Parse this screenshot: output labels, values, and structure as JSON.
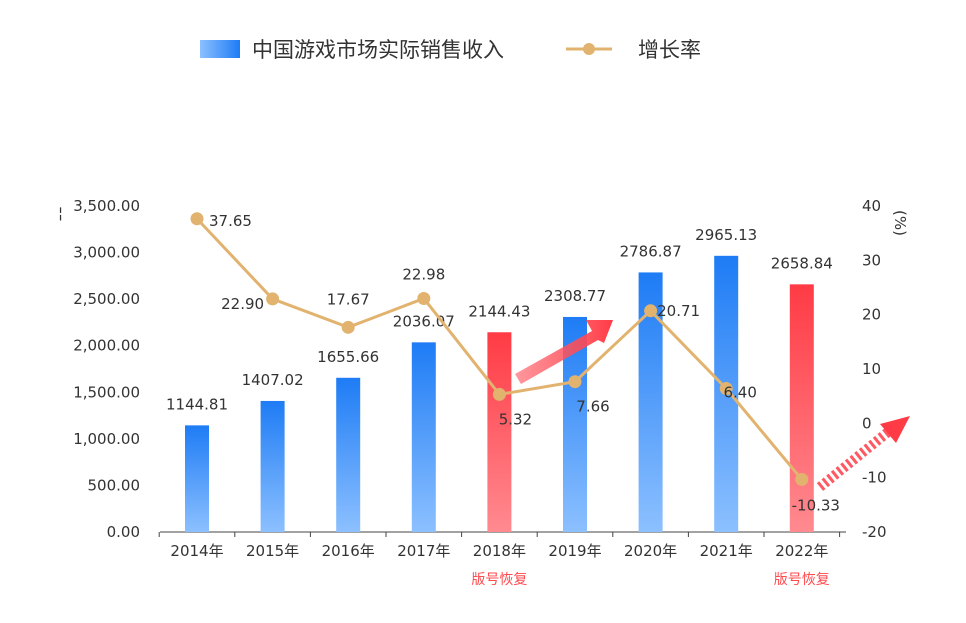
{
  "legend": {
    "bar_label": "中国游戏市场实际销售收入",
    "line_label": "增长率"
  },
  "colors": {
    "bar_top": "#1e7cf5",
    "bar_bottom": "#8cc0ff",
    "highlight_top": "#ff3b45",
    "highlight_bottom": "#ff8a90",
    "line": "#e2b36f",
    "axis": "#444444",
    "note": "#ff4a4f"
  },
  "chart_data": {
    "type": "bar",
    "categories": [
      "2014年",
      "2015年",
      "2016年",
      "2017年",
      "2018年",
      "2019年",
      "2020年",
      "2021年",
      "2022年"
    ],
    "series": [
      {
        "name": "中国游戏市场实际销售收入",
        "type": "bar",
        "values": [
          1144.81,
          1407.02,
          1655.66,
          2036.07,
          2144.43,
          2308.77,
          2786.87,
          2965.13,
          2658.84
        ],
        "value_labels": [
          "1144.81",
          "1407.02",
          "1655.66",
          "2036.07",
          "2144.43",
          "2308.77",
          "2786.87",
          "2965.13",
          "2658.84"
        ],
        "highlight": [
          false,
          false,
          false,
          false,
          true,
          false,
          false,
          false,
          true
        ]
      },
      {
        "name": "增长率",
        "type": "line",
        "values": [
          37.65,
          22.9,
          17.67,
          22.98,
          5.32,
          7.66,
          20.71,
          6.4,
          -10.33
        ],
        "value_labels": [
          "37.65",
          "22.90",
          "17.67",
          "22.98",
          "5.32",
          "7.66",
          "20.71",
          "6.40",
          "-10.33"
        ]
      }
    ],
    "y_left": {
      "ylim": [
        0,
        3500
      ],
      "ticks": [
        0,
        500,
        1000,
        1500,
        2000,
        2500,
        3000,
        3500
      ],
      "tick_labels": [
        "0.00",
        "500.00",
        "1,000.00",
        "1,500.00",
        "2,000.00",
        "2,500.00",
        "3,000.00",
        "3,500.00"
      ]
    },
    "y_right": {
      "ylim": [
        -20,
        40
      ],
      "ticks": [
        -20,
        -10,
        0,
        10,
        20,
        30,
        40
      ],
      "tick_labels": [
        "-20",
        "-10",
        "0",
        "10",
        "20",
        "30",
        "40"
      ],
      "unit": "(%)"
    },
    "annotations": [
      {
        "category": "2018年",
        "text": "版号恢复"
      },
      {
        "category": "2022年",
        "text": "版号恢复"
      }
    ]
  }
}
